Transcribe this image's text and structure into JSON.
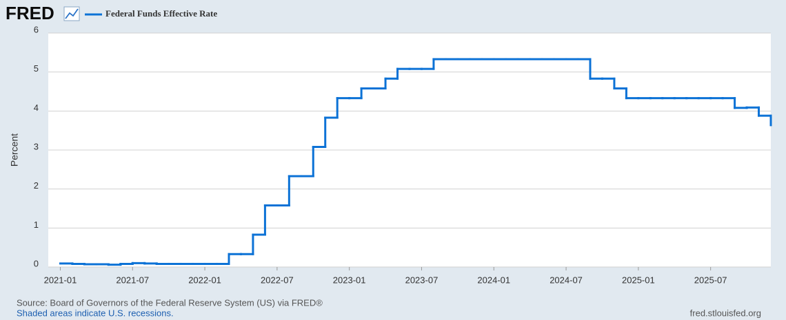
{
  "chart_data": {
    "type": "step-line",
    "brand": "FRED",
    "ylabel": "Percent",
    "source": "Source: Board of Governors of the Federal Reserve System (US) via FRED®",
    "note": "Shaded areas indicate U.S. recessions.",
    "site": "fred.stlouisfed.org",
    "x": [
      "2021-01",
      "2021-02",
      "2021-03",
      "2021-04",
      "2021-05",
      "2021-06",
      "2021-07",
      "2021-08",
      "2021-09",
      "2021-10",
      "2021-11",
      "2021-12",
      "2022-01",
      "2022-02",
      "2022-03",
      "2022-04",
      "2022-05",
      "2022-06",
      "2022-07",
      "2022-08",
      "2022-09",
      "2022-10",
      "2022-11",
      "2022-12",
      "2023-01",
      "2023-02",
      "2023-03",
      "2023-04",
      "2023-05",
      "2023-06",
      "2023-07",
      "2023-08",
      "2023-09",
      "2023-10",
      "2023-11",
      "2023-12",
      "2024-01",
      "2024-02",
      "2024-03",
      "2024-04",
      "2024-05",
      "2024-06",
      "2024-07",
      "2024-08",
      "2024-09",
      "2024-10",
      "2024-11",
      "2024-12",
      "2025-01",
      "2025-02",
      "2025-03",
      "2025-04",
      "2025-05",
      "2025-06",
      "2025-07",
      "2025-08",
      "2025-09",
      "2025-10",
      "2025-11",
      "2025-12"
    ],
    "series": [
      {
        "name": "Federal Funds Effective Rate",
        "color": "#0c72d6",
        "values": [
          0.09,
          0.08,
          0.07,
          0.07,
          0.06,
          0.08,
          0.1,
          0.09,
          0.08,
          0.08,
          0.08,
          0.08,
          0.08,
          0.08,
          0.33,
          0.33,
          0.83,
          1.58,
          1.58,
          2.33,
          2.33,
          3.08,
          3.83,
          4.33,
          4.33,
          4.58,
          4.58,
          4.83,
          5.08,
          5.08,
          5.08,
          5.33,
          5.33,
          5.33,
          5.33,
          5.33,
          5.33,
          5.33,
          5.33,
          5.33,
          5.33,
          5.33,
          5.33,
          5.33,
          4.83,
          4.83,
          4.58,
          4.33,
          4.33,
          4.33,
          4.33,
          4.33,
          4.33,
          4.33,
          4.33,
          4.33,
          4.08,
          4.09,
          3.88,
          3.64
        ]
      }
    ],
    "xlim": [
      "2020-12",
      "2025-12"
    ],
    "xticks": [
      "2021-01",
      "2021-07",
      "2022-01",
      "2022-07",
      "2023-01",
      "2023-07",
      "2024-01",
      "2024-07",
      "2025-01",
      "2025-07"
    ],
    "ylim": [
      0,
      6
    ],
    "yticks": [
      0,
      1,
      2,
      3,
      4,
      5,
      6
    ],
    "grid": true
  }
}
